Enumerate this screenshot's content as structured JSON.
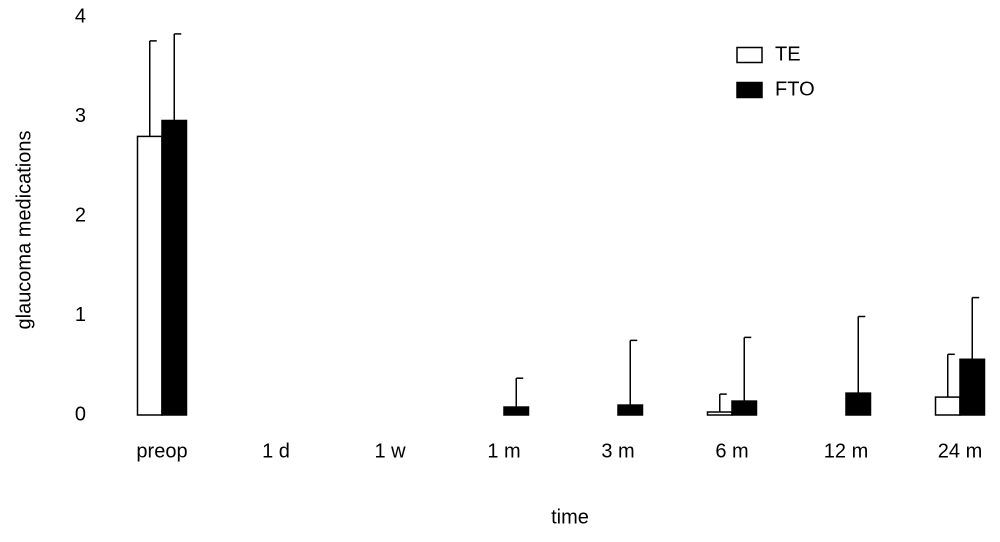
{
  "chart_data": {
    "type": "bar",
    "x_label": "time",
    "y_label": "glaucoma medications",
    "categories": [
      "preop",
      "1 d",
      "1 w",
      "1 m",
      "3 m",
      "6 m",
      "12 m",
      "24 m"
    ],
    "series": [
      {
        "name": "TE",
        "color": "#ffffff",
        "values": [
          2.8,
          0,
          0,
          0,
          0,
          0.03,
          0,
          0.18
        ],
        "errors": [
          0.96,
          null,
          null,
          null,
          null,
          0.18,
          null,
          0.43
        ]
      },
      {
        "name": "FTO",
        "color": "#000000",
        "values": [
          2.96,
          0,
          0,
          0.08,
          0.1,
          0.14,
          0.22,
          0.56
        ],
        "errors": [
          0.87,
          null,
          null,
          0.29,
          0.65,
          0.64,
          0.77,
          0.62
        ]
      }
    ],
    "ylim": [
      0,
      4
    ],
    "yticks": [
      0,
      1,
      2,
      3,
      4
    ],
    "legend": "top-right"
  }
}
